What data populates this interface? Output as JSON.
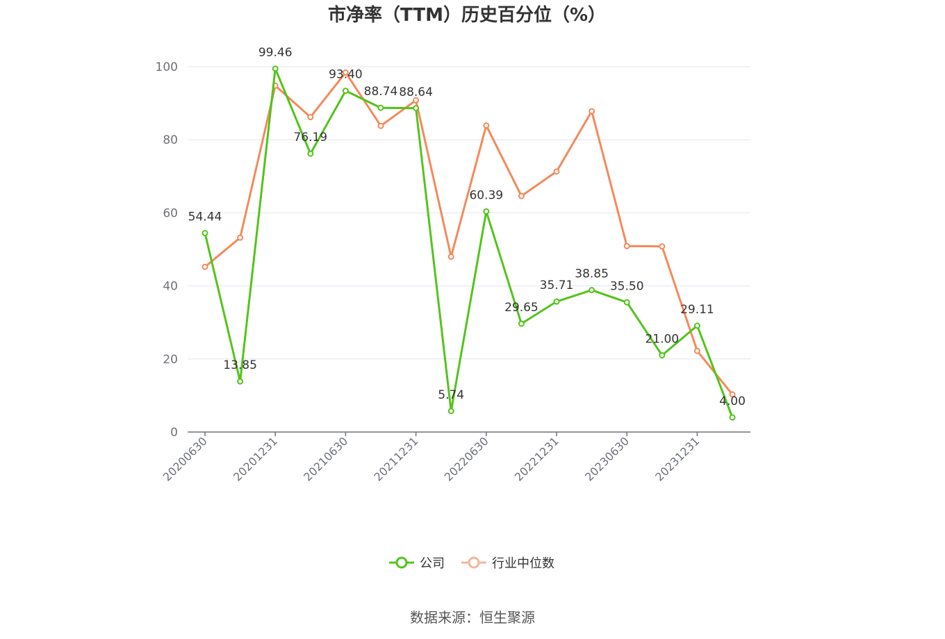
{
  "chart_data": {
    "type": "line",
    "title": "市净率（TTM）历史百分位（%）",
    "source": "数据来源：恒生聚源",
    "x": [
      "20200630",
      "20200930",
      "20201231",
      "20210331",
      "20210630",
      "20210930",
      "20211231",
      "20220331",
      "20220630",
      "20220930",
      "20221231",
      "20230331",
      "20230630",
      "20230930",
      "20231231",
      "20240331"
    ],
    "x_tick_labels": [
      "20200630",
      "20201231",
      "20210630",
      "20211231",
      "20220630",
      "20221231",
      "20230630",
      "20231231"
    ],
    "ylim": [
      0,
      100
    ],
    "y_ticks": [
      0,
      20,
      40,
      60,
      80,
      100
    ],
    "grid": true,
    "legend_position": "bottom-center",
    "series": [
      {
        "name": "公司",
        "color": "#52c41a",
        "show_labels": true,
        "values": [
          54.44,
          13.85,
          99.46,
          76.19,
          93.4,
          88.74,
          88.64,
          5.74,
          60.39,
          29.65,
          35.71,
          38.85,
          35.5,
          21.0,
          29.11,
          4.0
        ]
      },
      {
        "name": "行业中位数",
        "color": "#f5895a",
        "show_labels": false,
        "values": [
          45.2,
          53.2,
          94.8,
          86.2,
          98.4,
          83.8,
          90.8,
          48.0,
          83.9,
          64.6,
          71.3,
          87.8,
          50.9,
          50.8,
          22.2,
          10.3
        ]
      }
    ]
  }
}
